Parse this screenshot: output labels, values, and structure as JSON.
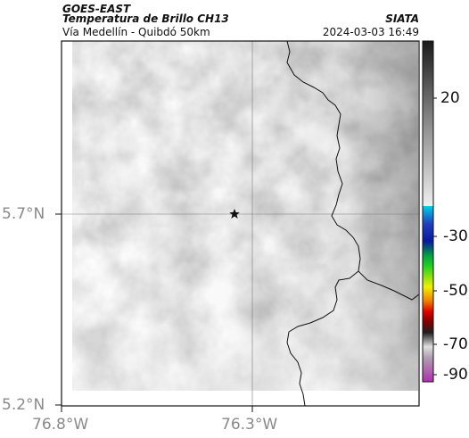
{
  "header": {
    "satellite": "GOES-EAST",
    "product": "Temperatura de Brillo CH13",
    "organization": "SIATA",
    "region": "Vía Medellín - Quibdó 50km",
    "datetime": "2024-03-03 16:49"
  },
  "map": {
    "lat_ticks": [
      "5.7°N",
      "5.2°N"
    ],
    "lon_ticks": [
      "76.8°W",
      "76.3°W"
    ],
    "marker": "star-icon"
  },
  "colorbar": {
    "labels": [
      "20",
      "-30",
      "-50",
      "-70",
      "-90"
    ],
    "colors": {
      "gray_top": "#1a1a1a",
      "gray_bottom": "#f0f0f0",
      "cyan": "#00c0d8",
      "blue": "#1020a0",
      "green": "#00c020",
      "yellow": "#f0f000",
      "red": "#e00000",
      "magenta": "#c040c0"
    }
  }
}
